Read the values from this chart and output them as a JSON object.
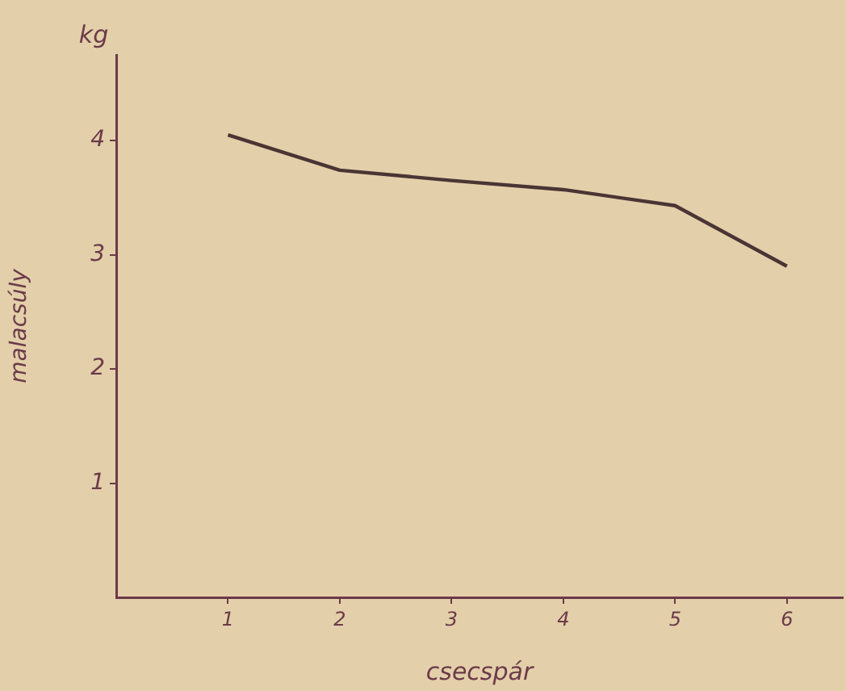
{
  "chart_data": {
    "type": "line",
    "xlabel": "csecspár",
    "ylabel": "malacsúly",
    "annotations": [
      "kg"
    ],
    "x": [
      1,
      2,
      3,
      4,
      5,
      6
    ],
    "series": [
      {
        "color": "#4a3535",
        "values": [
          4.05,
          3.74,
          3.65,
          3.57,
          3.43,
          2.9
        ]
      }
    ],
    "xlim": [
      0,
      6.5
    ],
    "xticks": [
      1,
      2,
      3,
      4,
      5,
      6
    ],
    "ylim": [
      0,
      4.75
    ],
    "yticks": [
      1,
      2,
      3,
      4
    ],
    "grid": false,
    "legend": false,
    "marker": "none",
    "line_style": "solid"
  }
}
